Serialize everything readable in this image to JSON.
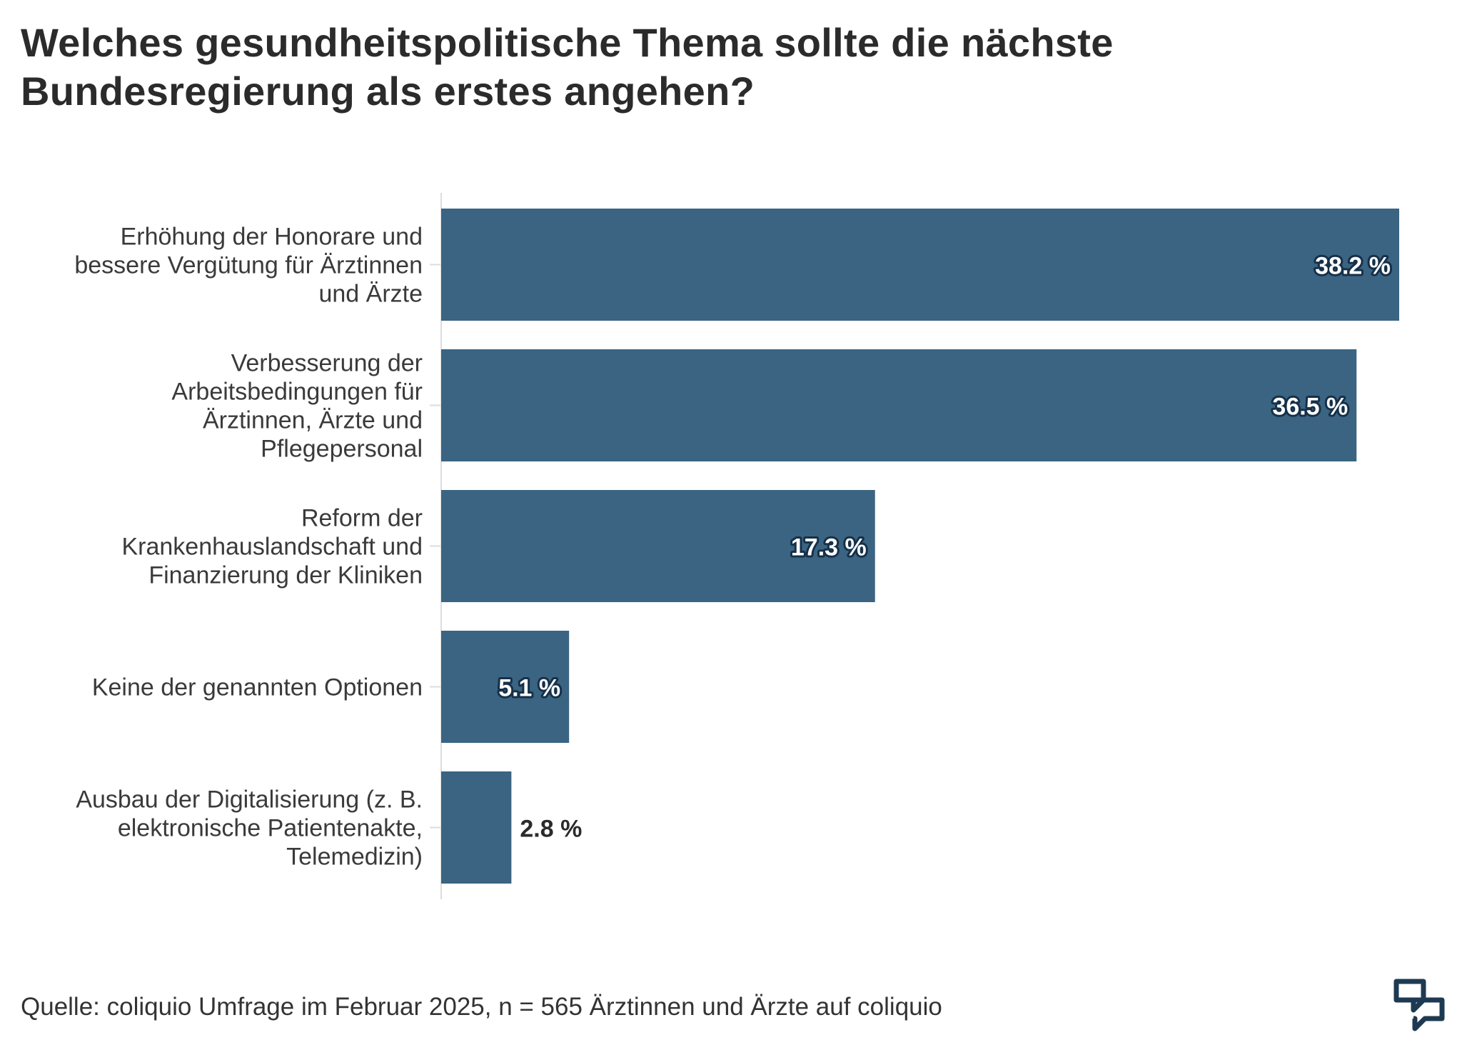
{
  "chart_data": {
    "type": "bar",
    "orientation": "horizontal",
    "title": "Welches gesundheitspolitische Thema sollte die nächste Bundesregierung als erstes angehen?",
    "categories": [
      "Erhöhung der Honorare und bessere Vergütung für Ärztinnen und Ärzte",
      "Verbesserung der Arbeitsbedingungen für Ärztinnen, Ärzte und Pflegepersonal",
      "Reform der Krankenhauslandschaft und Finanzierung der Kliniken",
      "Keine der genannten Optionen",
      "Ausbau der Digitalisierung (z. B. elektronische Patientenakte, Telemedizin)"
    ],
    "category_lines": [
      [
        "Erhöhung der Honorare und",
        "bessere Vergütung für Ärztinnen",
        "und Ärzte"
      ],
      [
        "Verbesserung der",
        "Arbeitsbedingungen für",
        "Ärztinnen, Ärzte und",
        "Pflegepersonal"
      ],
      [
        "Reform der",
        "Krankenhauslandschaft und",
        "Finanzierung der Kliniken"
      ],
      [
        "Keine der genannten Optionen"
      ],
      [
        "Ausbau der Digitalisierung (z. B.",
        "elektronische Patientenakte,",
        "Telemedizin)"
      ]
    ],
    "values": [
      38.2,
      36.5,
      17.3,
      5.1,
      2.8
    ],
    "value_labels": [
      "38.2 %",
      "36.5 %",
      "17.3 %",
      "5.1 %",
      "2.8 %"
    ],
    "unit": "%",
    "xlim": [
      0,
      38.2
    ],
    "xlabel": "",
    "ylabel": "",
    "grid": false,
    "legend": "none",
    "bar_color": "#3a6482",
    "label_outline_color": "#163049",
    "source": "Quelle: coliquio Umfrage im Februar 2025, n = 565 Ärztinnen und Ärzte auf coliquio"
  },
  "colors": {
    "bar": "#3a6482",
    "label_inside": "#ffffff",
    "label_outside": "#2b2b2b",
    "axis": "#dddddd",
    "logo": "#1e3a52"
  },
  "logo": {
    "icon": "coliquio-logo-icon"
  }
}
